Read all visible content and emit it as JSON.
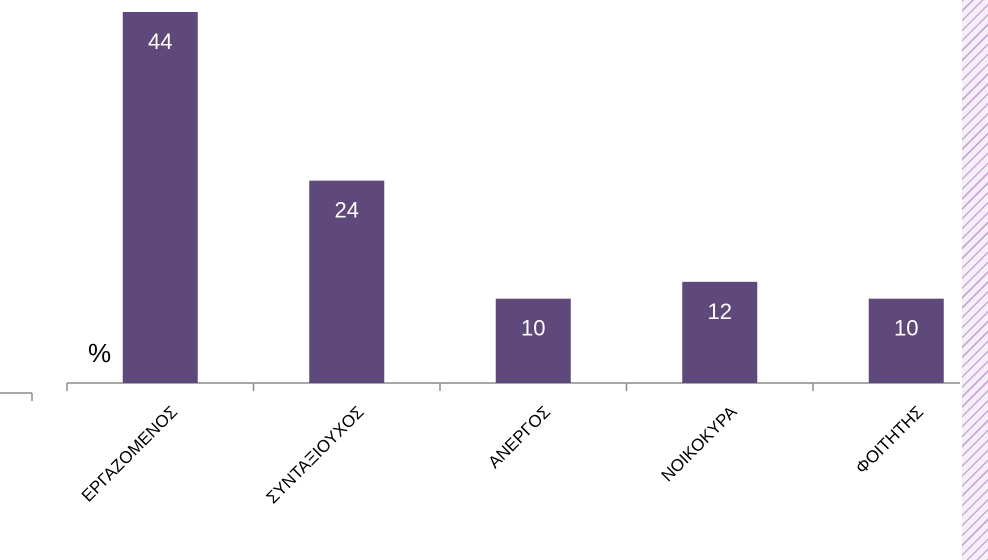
{
  "chart_data": {
    "type": "bar",
    "categories": [
      "ΕΡΓΑΖΟΜΕΝΟΣ",
      "ΣΥΝΤΑΞΙΟΥΧΟΣ",
      "ΑΝΕΡΓΟΣ",
      "ΝΟΙΚΟΚΥΡΑ",
      "ΦΟΙΤΗΤΗΣ"
    ],
    "values": [
      44,
      24,
      10,
      12,
      10
    ],
    "ylabel": "%",
    "ylim": [
      0,
      44
    ],
    "grid": false,
    "legend": "none",
    "bar_color": "#5f497a",
    "label_color": "#ffffff"
  }
}
